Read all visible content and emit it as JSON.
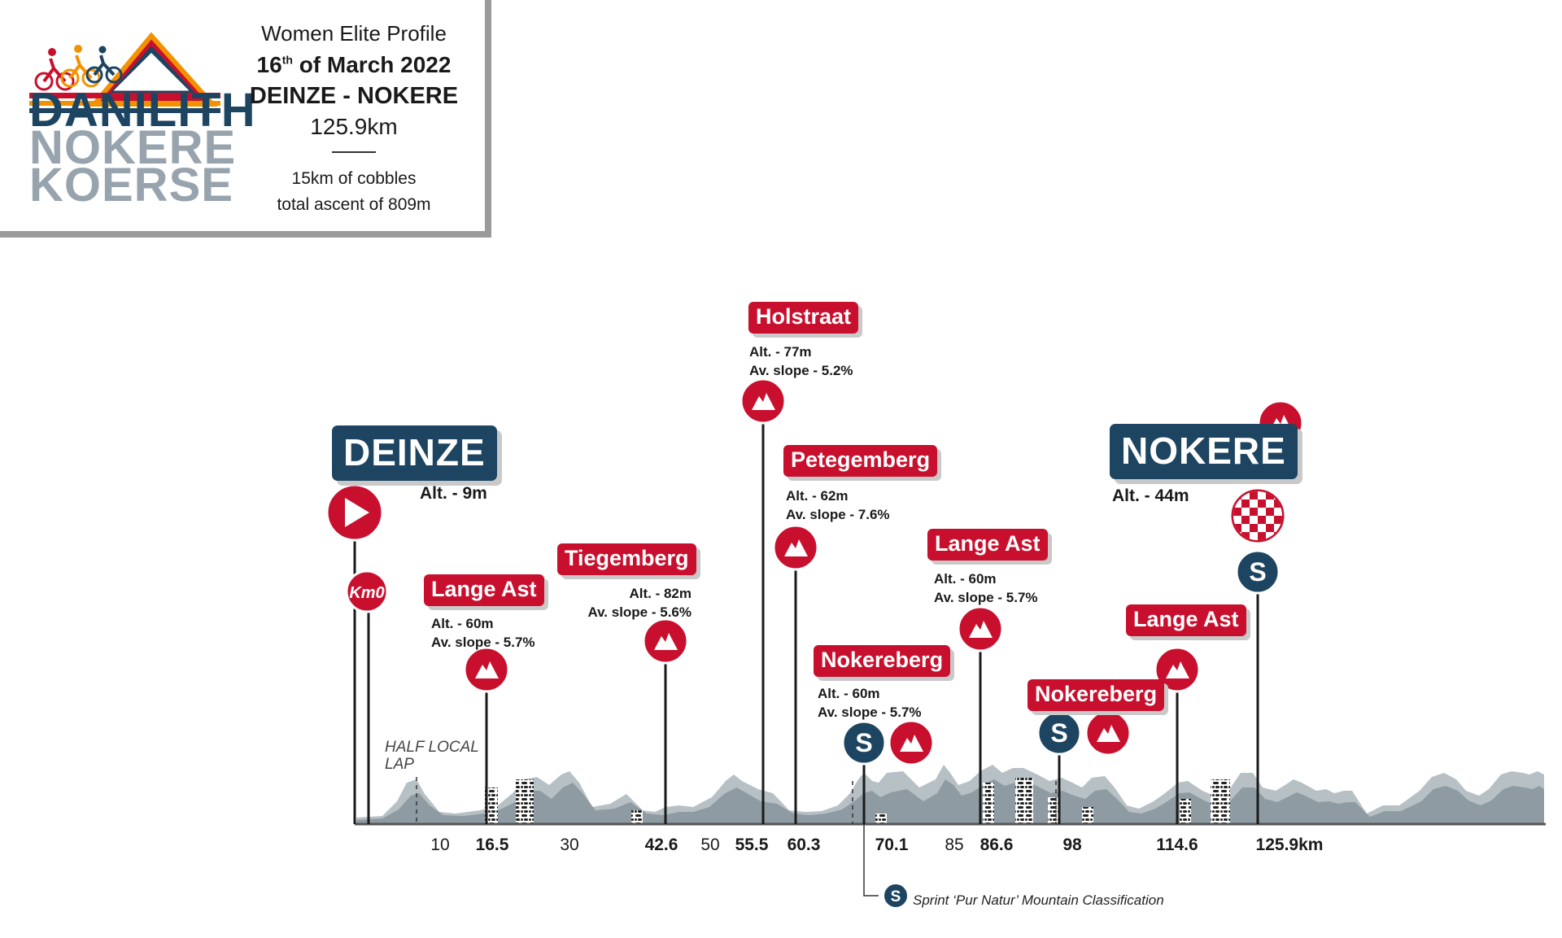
{
  "logo": {
    "word1": "DANILITH",
    "word2": "NOKERE",
    "word3": "KOERSE",
    "colors": {
      "navy": "#1d4561",
      "grey": "#97a4ad",
      "red": "#c8102e",
      "orange": "#f39200"
    }
  },
  "header": {
    "category": "Women Elite Profile",
    "date_day": "16",
    "date_suffix": "th",
    "date_rest": " of March 2022",
    "route": "DEINZE - NOKERE",
    "distance": "125.9km",
    "cobbles": "15km of cobbles",
    "ascent": "total ascent of 809m"
  },
  "profile": {
    "start": {
      "name": "DEINZE",
      "alt": "Alt. - 9m",
      "km0_label": "Km0"
    },
    "finish": {
      "name": "NOKERE",
      "alt": "Alt. - 44m"
    },
    "half_lap": "HALF LOCAL LAP",
    "climbs": [
      {
        "name": "Lange Ast",
        "alt": "Alt. - 60m",
        "slope": "Av. slope - 5.7%"
      },
      {
        "name": "Tiegemberg",
        "alt": "Alt. - 82m",
        "slope": "Av. slope - 5.6%"
      },
      {
        "name": "Holstraat",
        "alt": "Alt. - 77m",
        "slope": "Av. slope - 5.2%"
      },
      {
        "name": "Petegemberg",
        "alt": "Alt. - 62m",
        "slope": "Av. slope - 7.6%"
      },
      {
        "name": "Nokereberg",
        "alt": "Alt. - 60m",
        "slope": "Av. slope - 5.7%"
      },
      {
        "name": "Lange Ast",
        "alt": "Alt. - 60m",
        "slope": "Av. slope - 5.7%"
      },
      {
        "name": "Nokereberg"
      },
      {
        "name": "Lange Ast"
      }
    ],
    "sprint_symbol": "S",
    "km_markers": [
      {
        "label": "10",
        "bold": false
      },
      {
        "label": "16.5",
        "bold": true
      },
      {
        "label": "30",
        "bold": false
      },
      {
        "label": "42.6",
        "bold": true
      },
      {
        "label": "50",
        "bold": false
      },
      {
        "label": "55.5",
        "bold": true
      },
      {
        "label": "60.3",
        "bold": true
      },
      {
        "label": "70.1",
        "bold": true
      },
      {
        "label": "85",
        "bold": false
      },
      {
        "label": "86.6",
        "bold": true
      },
      {
        "label": "98",
        "bold": true
      },
      {
        "label": "114.6",
        "bold": true
      },
      {
        "label": "125.9km",
        "bold": true
      }
    ],
    "legend": "Sprint ‘Pur Natur’ Mountain Classification",
    "colors": {
      "profile_light": "#b7c0c5",
      "profile_dark": "#8e9ba2",
      "red": "#c8102e",
      "navy": "#1d4561"
    }
  }
}
